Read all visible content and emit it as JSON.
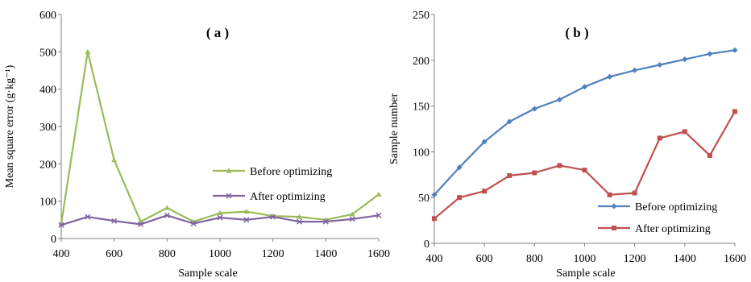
{
  "chart_data": [
    {
      "type": "line",
      "panel_label": "( a )",
      "xlabel": "Sample scale",
      "ylabel": "Mean square error (g·kg⁻¹)",
      "x": [
        400,
        500,
        600,
        700,
        800,
        900,
        1000,
        1100,
        1200,
        1300,
        1400,
        1500,
        1600
      ],
      "xlim": [
        400,
        1600
      ],
      "ylim": [
        0,
        600
      ],
      "xticks": [
        "400",
        "600",
        "800",
        "1000",
        "1200",
        "1400",
        "1600"
      ],
      "yticks": [
        "0",
        "100",
        "200",
        "300",
        "400",
        "500",
        "600"
      ],
      "legend_position": "right",
      "series": [
        {
          "name": "Before optimizing",
          "color": "#9BBB59",
          "marker": "triangle",
          "values": [
            40,
            500,
            210,
            45,
            82,
            45,
            68,
            72,
            60,
            58,
            50,
            65,
            118
          ]
        },
        {
          "name": "After optimizing",
          "color": "#8064A2",
          "marker": "x",
          "values": [
            36,
            58,
            47,
            38,
            62,
            40,
            56,
            50,
            58,
            45,
            45,
            52,
            62
          ]
        }
      ]
    },
    {
      "type": "line",
      "panel_label": "( b )",
      "xlabel": "Sample scale",
      "ylabel": "Sample number",
      "x": [
        400,
        500,
        600,
        700,
        800,
        900,
        1000,
        1100,
        1200,
        1300,
        1400,
        1500,
        1600
      ],
      "xlim": [
        400,
        1600
      ],
      "ylim": [
        0,
        250
      ],
      "xticks": [
        "400",
        "600",
        "800",
        "1000",
        "1200",
        "1400",
        "1600"
      ],
      "yticks": [
        "0",
        "50",
        "100",
        "150",
        "200",
        "250"
      ],
      "legend_position": "bottom-right",
      "series": [
        {
          "name": "Before optimizing",
          "color": "#4F81BD",
          "marker": "diamond",
          "values": [
            53,
            83,
            111,
            133,
            147,
            157,
            171,
            182,
            189,
            195,
            201,
            207,
            211
          ]
        },
        {
          "name": "After optimizing",
          "color": "#C0504D",
          "marker": "square",
          "values": [
            27,
            50,
            57,
            74,
            77,
            85,
            80,
            53,
            55,
            115,
            122,
            96,
            144
          ]
        }
      ]
    }
  ]
}
